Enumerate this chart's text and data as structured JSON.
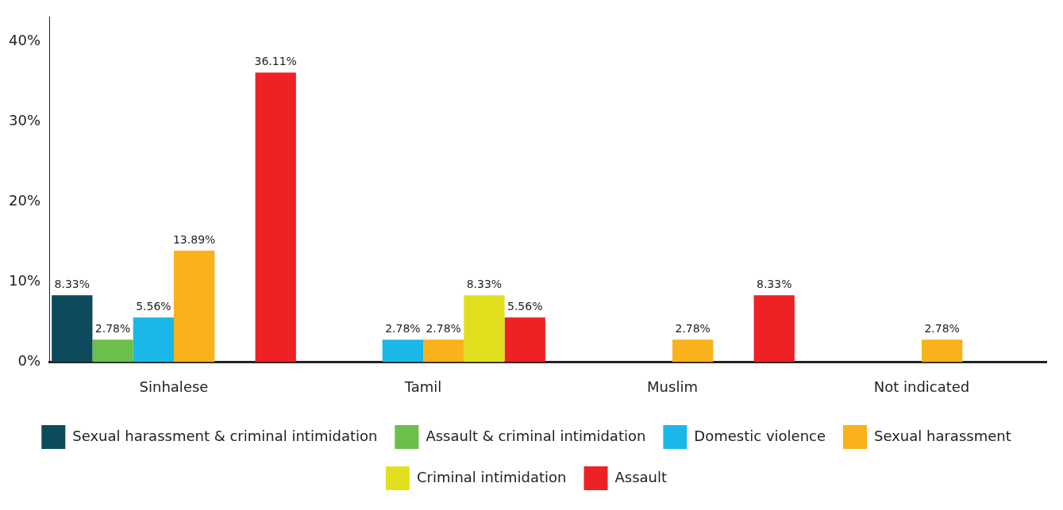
{
  "chart_data": {
    "type": "bar",
    "categories": [
      "Sinhalese",
      "Tamil",
      "Muslim",
      "Not indicated"
    ],
    "series": [
      {
        "name": "Sexual harassment & criminal intimidation",
        "color": "#0d4a5c",
        "values": [
          8.33,
          0,
          0,
          0
        ],
        "value_labels": [
          "8.33%",
          null,
          null,
          null
        ]
      },
      {
        "name": "Assault & criminal intimidation",
        "color": "#6cbf4a",
        "values": [
          2.78,
          0,
          0,
          0
        ],
        "value_labels": [
          "2.78%",
          null,
          null,
          null
        ]
      },
      {
        "name": "Domestic violence",
        "color": "#1ab8e8",
        "values": [
          5.56,
          2.78,
          0,
          0
        ],
        "value_labels": [
          "5.56%",
          "2.78%",
          null,
          null
        ]
      },
      {
        "name": "Sexual harassment",
        "color": "#f9b21b",
        "values": [
          13.89,
          2.78,
          2.78,
          2.78
        ],
        "value_labels": [
          "13.89%",
          "2.78%",
          "2.78%",
          "2.78%"
        ]
      },
      {
        "name": "Criminal intimidation",
        "color": "#e2e01e",
        "values": [
          0,
          8.33,
          0,
          0
        ],
        "value_labels": [
          null,
          "8.33%",
          null,
          null
        ]
      },
      {
        "name": "Assault",
        "color": "#ee2124",
        "values": [
          36.11,
          5.56,
          8.33,
          0
        ],
        "value_labels": [
          "36.11%",
          "5.56%",
          "8.33%",
          null
        ]
      }
    ],
    "ylim": [
      0,
      43
    ],
    "yticks": [
      {
        "value": 0,
        "label": "0%"
      },
      {
        "value": 10,
        "label": "10%"
      },
      {
        "value": 20,
        "label": "20%"
      },
      {
        "value": 30,
        "label": "30%"
      },
      {
        "value": 40,
        "label": "40%"
      }
    ],
    "grid": false,
    "legend": "bottom"
  }
}
